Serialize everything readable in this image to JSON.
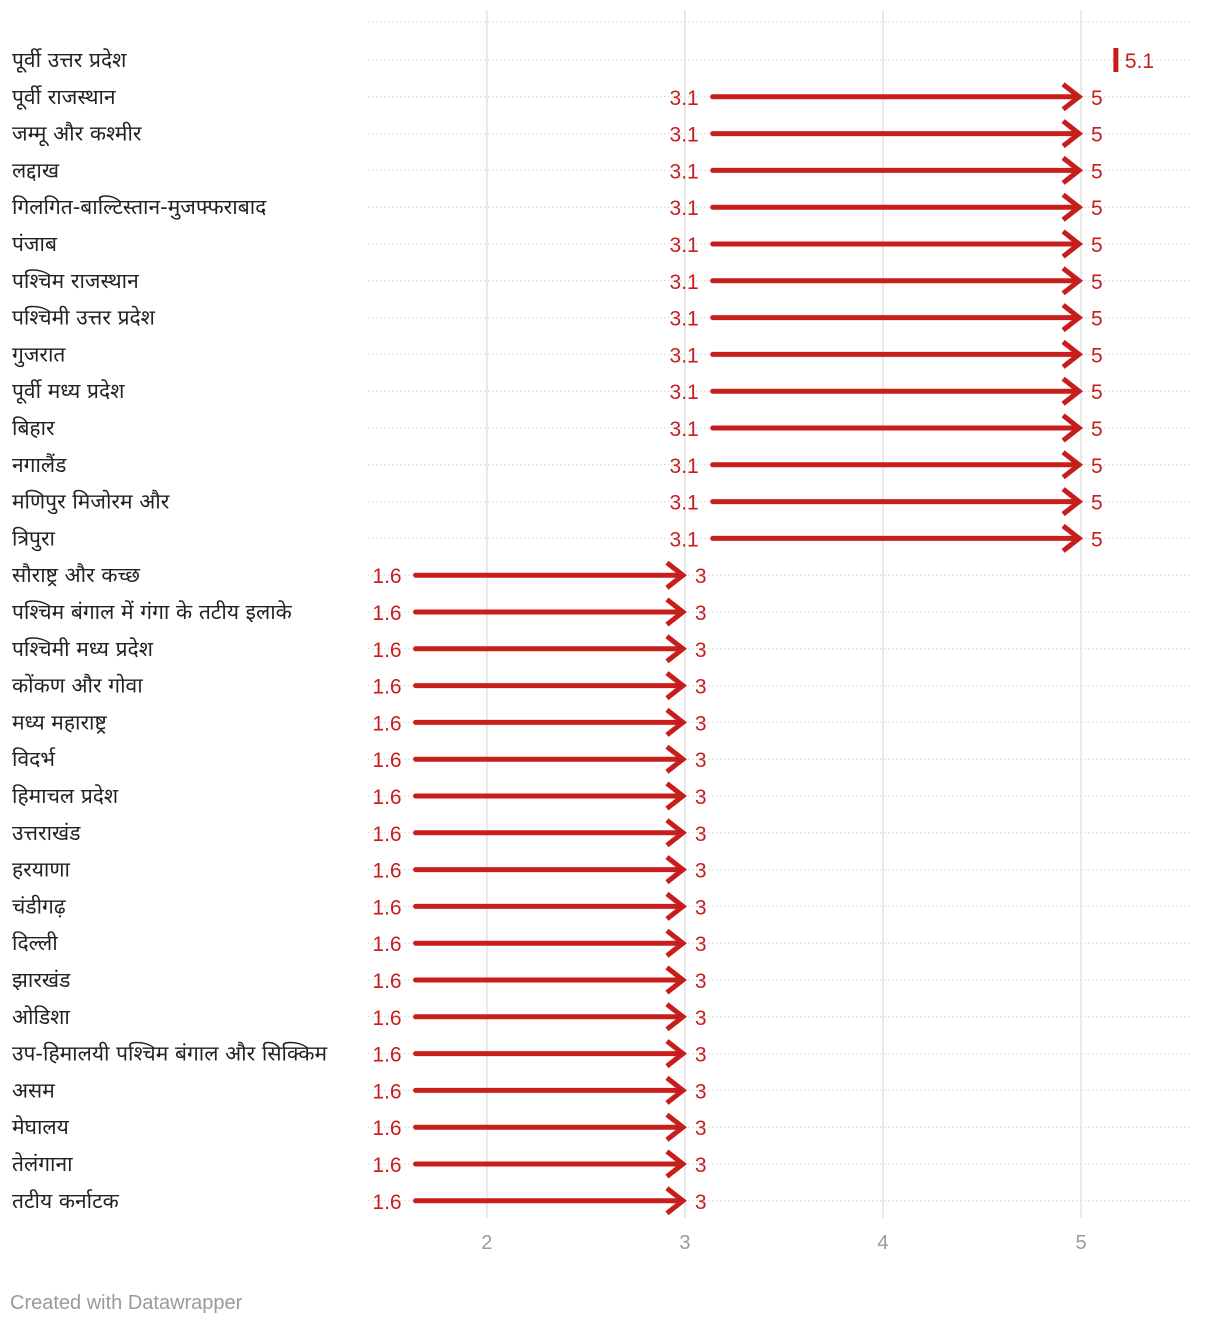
{
  "chart_data": {
    "type": "arrow",
    "categories": [
      "पूर्वी उत्तर प्रदेश",
      "पूर्वी राजस्थान",
      "जम्मू और कश्मीर",
      "लद्दाख",
      "गिलगित-बाल्टिस्तान-मुजफ्फराबाद",
      "पंजाब",
      "पश्चिम राजस्थान",
      "पश्चिमी उत्तर प्रदेश",
      "गुजरात",
      "पूर्वी मध्य प्रदेश",
      "बिहार",
      "नगालैंड",
      "मणिपुर मिजोरम और",
      "त्रिपुरा",
      "सौराष्ट्र और कच्छ",
      "पश्चिम बंगाल में गंगा के तटीय इलाके",
      "पश्चिमी मध्य प्रदेश",
      "कोंकण और गोवा",
      "मध्य महाराष्ट्र",
      "विदर्भ",
      "हिमाचल प्रदेश",
      "उत्तराखंड",
      "हरयाणा",
      "चंडीगढ़",
      "दिल्ली",
      "झारखंड",
      "ओडिशा",
      "उप-हिमालयी पश्चिम बंगाल और सिक्किम",
      "असम",
      "मेघालय",
      "तेलंगाना",
      "तटीय कर्नाटक"
    ],
    "start_values": [
      5.1,
      3.1,
      3.1,
      3.1,
      3.1,
      3.1,
      3.1,
      3.1,
      3.1,
      3.1,
      3.1,
      3.1,
      3.1,
      3.1,
      1.6,
      1.6,
      1.6,
      1.6,
      1.6,
      1.6,
      1.6,
      1.6,
      1.6,
      1.6,
      1.6,
      1.6,
      1.6,
      1.6,
      1.6,
      1.6,
      1.6,
      1.6
    ],
    "end_values": [
      5.1,
      5,
      5,
      5,
      5,
      5,
      5,
      5,
      5,
      5,
      5,
      5,
      5,
      5,
      3,
      3,
      3,
      3,
      3,
      3,
      3,
      3,
      3,
      3,
      3,
      3,
      3,
      3,
      3,
      3,
      3,
      3
    ],
    "start_labels": [
      "",
      "3.1",
      "3.1",
      "3.1",
      "3.1",
      "3.1",
      "3.1",
      "3.1",
      "3.1",
      "3.1",
      "3.1",
      "3.1",
      "3.1",
      "3.1",
      "1.6",
      "1.6",
      "1.6",
      "1.6",
      "1.6",
      "1.6",
      "1.6",
      "1.6",
      "1.6",
      "1.6",
      "1.6",
      "1.6",
      "1.6",
      "1.6",
      "1.6",
      "1.6",
      "1.6",
      "1.6"
    ],
    "end_labels": [
      "5.1",
      "5",
      "5",
      "5",
      "5",
      "5",
      "5",
      "5",
      "5",
      "5",
      "5",
      "5",
      "5",
      "5",
      "3",
      "3",
      "3",
      "3",
      "3",
      "3",
      "3",
      "3",
      "3",
      "3",
      "3",
      "3",
      "3",
      "3",
      "3",
      "3",
      "3",
      "3"
    ],
    "xlim": [
      1.4,
      5.55
    ],
    "xticks": [
      2,
      3,
      4,
      5
    ],
    "xtick_labels": [
      "2",
      "3",
      "4",
      "5"
    ],
    "grid": true,
    "colors": {
      "arrow": "#c71e1d",
      "grid": "#e2e2e2",
      "row_line": "#d4d4d4",
      "tick_text": "#9a9a9a",
      "label_text": "#222222"
    }
  },
  "footer": {
    "credit": "Created with Datawrapper"
  }
}
